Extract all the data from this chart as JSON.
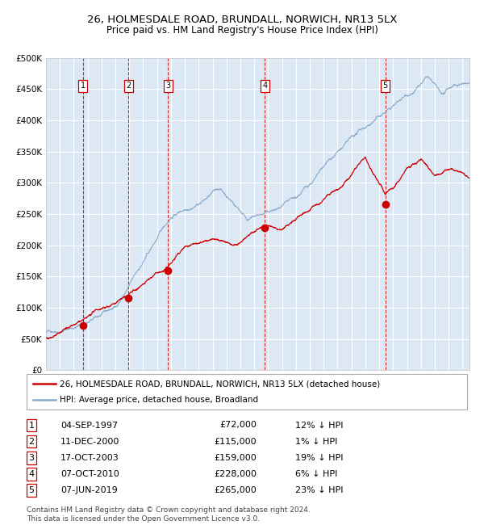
{
  "title": "26, HOLMESDALE ROAD, BRUNDALL, NORWICH, NR13 5LX",
  "subtitle": "Price paid vs. HM Land Registry's House Price Index (HPI)",
  "ylim": [
    0,
    500000
  ],
  "xlim_start": 1995.0,
  "xlim_end": 2025.5,
  "yticks": [
    0,
    50000,
    100000,
    150000,
    200000,
    250000,
    300000,
    350000,
    400000,
    450000,
    500000
  ],
  "ytick_labels": [
    "£0",
    "£50K",
    "£100K",
    "£150K",
    "£200K",
    "£250K",
    "£300K",
    "£350K",
    "£400K",
    "£450K",
    "£500K"
  ],
  "background_color": "#dce9f5",
  "grid_color": "#ffffff",
  "sale_dates_decimal": [
    1997.67,
    2000.94,
    2003.79,
    2010.77,
    2019.43
  ],
  "sale_prices": [
    72000,
    115000,
    159000,
    228000,
    265000
  ],
  "sale_labels": [
    "1",
    "2",
    "3",
    "4",
    "5"
  ],
  "sale_date_strings": [
    "04-SEP-1997",
    "11-DEC-2000",
    "17-OCT-2003",
    "07-OCT-2010",
    "07-JUN-2019"
  ],
  "sale_price_strings": [
    "£72,000",
    "£115,000",
    "£159,000",
    "£228,000",
    "£265,000"
  ],
  "sale_hpi_strings": [
    "12% ↓ HPI",
    "1% ↓ HPI",
    "19% ↓ HPI",
    "6% ↓ HPI",
    "23% ↓ HPI"
  ],
  "red_line_color": "#cc0000",
  "blue_line_color": "#88aacc",
  "marker_color": "#cc0000",
  "legend_line1": "26, HOLMESDALE ROAD, BRUNDALL, NORWICH, NR13 5LX (detached house)",
  "legend_line2": "HPI: Average price, detached house, Broadland",
  "footer": "Contains HM Land Registry data © Crown copyright and database right 2024.\nThis data is licensed under the Open Government Licence v3.0.",
  "title_fontsize": 9.5,
  "subtitle_fontsize": 8.5,
  "tick_fontsize": 7.5,
  "legend_fontsize": 7.5,
  "table_fontsize": 8,
  "footer_fontsize": 6.5
}
